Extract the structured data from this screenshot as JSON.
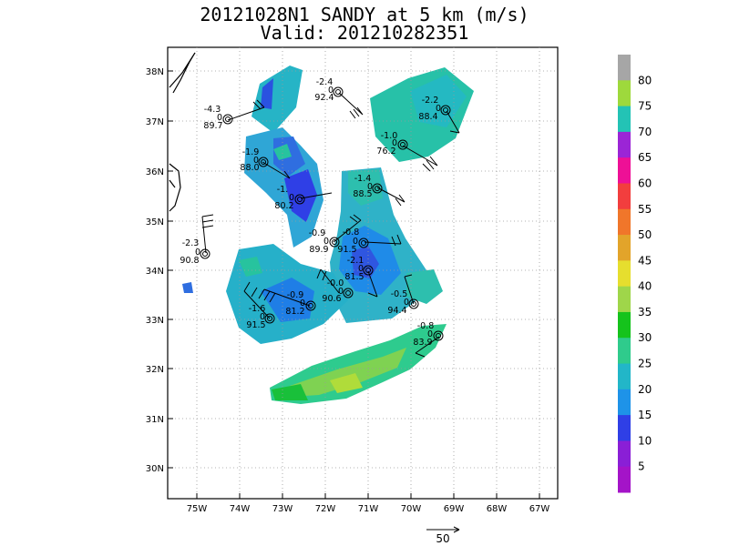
{
  "title": {
    "line1": "20121028N1 SANDY at 5 km (m/s)",
    "line2": "Valid: 201210282351"
  },
  "map": {
    "lat_labels": [
      "38N",
      "37N",
      "36N",
      "35N",
      "34N",
      "33N",
      "32N",
      "31N",
      "30N"
    ],
    "lon_labels": [
      "75W",
      "74W",
      "73W",
      "72W",
      "71W",
      "70W",
      "69W",
      "68W",
      "67W"
    ]
  },
  "colorbar": {
    "labels": [
      "80",
      "75",
      "70",
      "65",
      "60",
      "55",
      "50",
      "45",
      "40",
      "35",
      "30",
      "25",
      "20",
      "15",
      "10",
      "5"
    ],
    "colors": [
      "#a6a6a6",
      "#9ed93c",
      "#23c3b5",
      "#9b25d6",
      "#ee1096",
      "#f23e3e",
      "#f0762a",
      "#e2a42a",
      "#e6de2e",
      "#9fd64a",
      "#15c31c",
      "#2fcb8c",
      "#22b6c8",
      "#1e93e8",
      "#2f3fe6",
      "#8a1fd6",
      "#a414c8"
    ]
  },
  "legend": {
    "scale_label": "50"
  },
  "observations": [
    {
      "top": "-2.4",
      "mid": "0",
      "bot": "92.4"
    },
    {
      "top": "-4.3",
      "mid": "0",
      "bot": "89.7"
    },
    {
      "top": "-2.2",
      "mid": "0",
      "bot": "88.4"
    },
    {
      "top": "-1.9",
      "mid": "0",
      "bot": "88.0"
    },
    {
      "top": "-1.0",
      "mid": "0",
      "bot": "76.2"
    },
    {
      "top": "-1.4",
      "mid": "0",
      "bot": "88.5"
    },
    {
      "top": "-1.",
      "mid": "0",
      "bot": "80.2"
    },
    {
      "top": "-2.3",
      "mid": "0",
      "bot": "90.8"
    },
    {
      "top": "-0.9",
      "mid": "0",
      "bot": "89.9"
    },
    {
      "top": "-0.8",
      "mid": "0",
      "bot": "91.5"
    },
    {
      "top": "-2.1",
      "mid": "0",
      "bot": "81.5"
    },
    {
      "top": "-0.0",
      "mid": "0",
      "bot": "90.6"
    },
    {
      "top": "-0.9",
      "mid": "0",
      "bot": "81.2"
    },
    {
      "top": "-1.6",
      "mid": "0",
      "bot": "91.5"
    },
    {
      "top": "-0.5",
      "mid": "0",
      "bot": "94.4"
    },
    {
      "top": "-0.8",
      "mid": "0",
      "bot": "83.9"
    }
  ]
}
